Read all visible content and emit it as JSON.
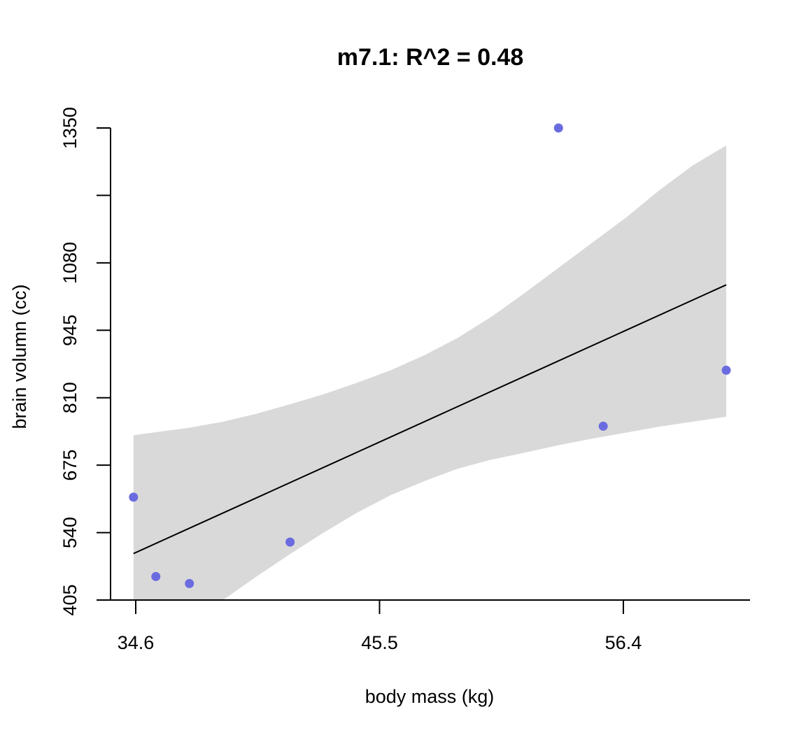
{
  "chart_data": {
    "type": "scatter",
    "title": "m7.1: R^2 = 0.48",
    "xlabel": "body mass (kg)",
    "ylabel": "brain volumn (cc)",
    "xlim": [
      34.6,
      61.0
    ],
    "ylim": [
      405,
      1350
    ],
    "x_ticks": [
      34.6,
      45.5,
      56.4
    ],
    "x_tick_labels": [
      "34.6",
      "45.5",
      "56.4"
    ],
    "y_ticks": [
      405,
      540,
      675,
      810,
      945,
      1080,
      1215,
      1350
    ],
    "y_tick_labels": [
      "405",
      "540",
      "675",
      "810",
      "945",
      "1080",
      "",
      "1350"
    ],
    "grid": false,
    "legend": "none",
    "point_color": "#6b6be0",
    "band_color": "#d9d9d9",
    "line_color": "#000000",
    "points": [
      {
        "x": 34.5,
        "y": 611
      },
      {
        "x": 35.5,
        "y": 452
      },
      {
        "x": 37.0,
        "y": 438
      },
      {
        "x": 41.5,
        "y": 521
      },
      {
        "x": 53.5,
        "y": 1350
      },
      {
        "x": 55.5,
        "y": 753
      },
      {
        "x": 61.0,
        "y": 865
      }
    ],
    "fit_line": [
      {
        "x": 34.5,
        "y": 498
      },
      {
        "x": 61.0,
        "y": 1036
      }
    ],
    "interval_band": {
      "x": [
        34.5,
        35.5,
        37.0,
        38.5,
        40.0,
        41.5,
        43.0,
        44.5,
        46.0,
        47.5,
        49.0,
        50.5,
        52.0,
        53.5,
        55.0,
        56.5,
        58.0,
        59.5,
        61.0
      ],
      "upper": [
        735,
        741,
        750,
        762,
        778,
        797,
        817,
        840,
        865,
        895,
        930,
        972,
        1020,
        1070,
        1120,
        1170,
        1225,
        1275,
        1315
      ],
      "lower": [
        262,
        297,
        350,
        405,
        452,
        497,
        540,
        580,
        615,
        643,
        668,
        686,
        700,
        715,
        728,
        740,
        752,
        762,
        772
      ]
    }
  }
}
